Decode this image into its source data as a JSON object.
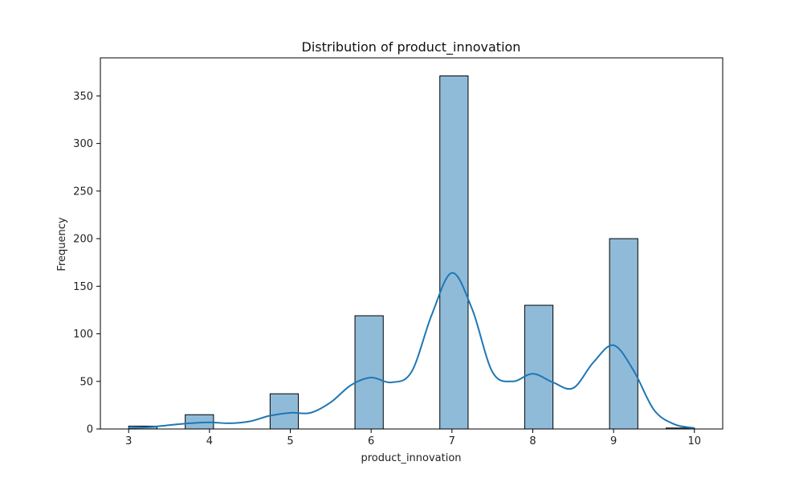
{
  "chart_data": {
    "type": "bar",
    "title": "Distribution of product_innovation",
    "xlabel": "product_innovation",
    "ylabel": "Frequency",
    "bin_width": 0.35,
    "bins": [
      {
        "x_start": 3.0,
        "x_end": 3.35,
        "value": 3
      },
      {
        "x_start": 3.7,
        "x_end": 4.05,
        "value": 15
      },
      {
        "x_start": 4.75,
        "x_end": 5.1,
        "value": 37
      },
      {
        "x_start": 5.8,
        "x_end": 6.15,
        "value": 119
      },
      {
        "x_start": 6.85,
        "x_end": 7.2,
        "value": 371
      },
      {
        "x_start": 7.9,
        "x_end": 8.25,
        "value": 130
      },
      {
        "x_start": 8.95,
        "x_end": 9.3,
        "value": 200
      },
      {
        "x_start": 9.65,
        "x_end": 10.0,
        "value": 1
      }
    ],
    "kde": {
      "x": [
        3.0,
        3.25,
        3.5,
        3.75,
        4.0,
        4.25,
        4.5,
        4.75,
        5.0,
        5.25,
        5.5,
        5.75,
        6.0,
        6.25,
        6.5,
        6.75,
        7.0,
        7.25,
        7.5,
        7.75,
        8.0,
        8.25,
        8.5,
        8.75,
        9.0,
        9.25,
        9.5,
        9.75,
        10.0
      ],
      "y": [
        1,
        2,
        4,
        6,
        7,
        6,
        8,
        14,
        17,
        17,
        28,
        46,
        54,
        49,
        60,
        120,
        164,
        126,
        60,
        50,
        58,
        49,
        43,
        70,
        88,
        61,
        20,
        5,
        1
      ]
    },
    "xlim": [
      2.65,
      10.35
    ],
    "ylim": [
      0,
      390
    ],
    "xticks": [
      3,
      4,
      5,
      6,
      7,
      8,
      9,
      10
    ],
    "yticks": [
      0,
      50,
      100,
      150,
      200,
      250,
      300,
      350
    ],
    "grid": false,
    "colors": {
      "bar_fill": "#8fbbd9",
      "bar_edge": "#000000",
      "kde_line": "#1f77b4",
      "axis": "#000000"
    }
  }
}
